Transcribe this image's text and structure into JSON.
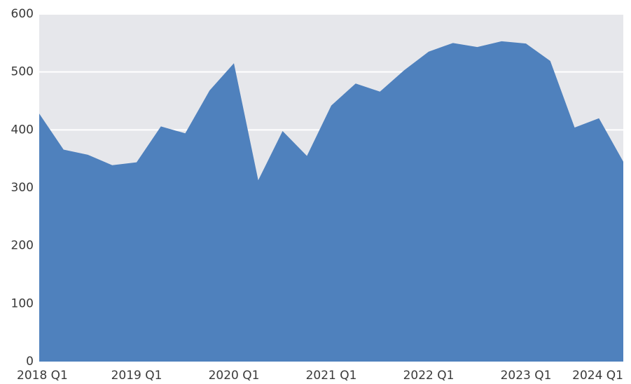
{
  "chart_data": {
    "type": "area",
    "categories": [
      "2018 Q1",
      null,
      null,
      null,
      "2019 Q1",
      null,
      null,
      null,
      "2020 Q1",
      null,
      null,
      null,
      "2021 Q1",
      null,
      null,
      null,
      "2022 Q1",
      null,
      null,
      null,
      "2023 Q1",
      null,
      null,
      null,
      "2024 Q1"
    ],
    "values": [
      428,
      366,
      357,
      339,
      344,
      406,
      394,
      468,
      515,
      313,
      398,
      355,
      442,
      480,
      466,
      503,
      535,
      550,
      543,
      553,
      549,
      519,
      404,
      420,
      345
    ],
    "color": "#4f81bd",
    "ylim": [
      0,
      600
    ],
    "yticks": [
      0,
      100,
      200,
      300,
      400,
      500,
      600
    ],
    "grid": true
  }
}
